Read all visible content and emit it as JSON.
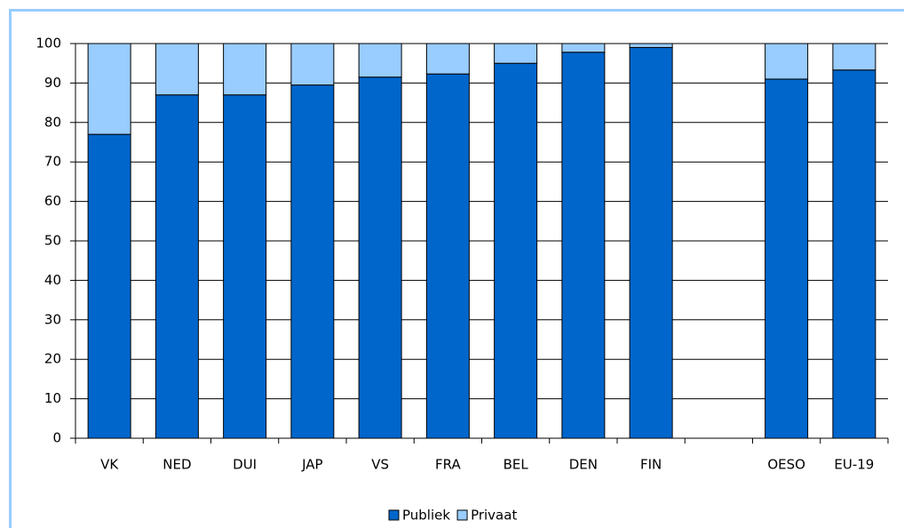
{
  "chart_data": {
    "type": "bar",
    "stacked": true,
    "categories": [
      "VK",
      "NED",
      "DUI",
      "JAP",
      "VS",
      "FRA",
      "BEL",
      "DEN",
      "FIN",
      null,
      "OESO",
      "EU-19"
    ],
    "series": [
      {
        "name": "Publiek",
        "color": "#0066cc",
        "values": [
          77,
          87,
          87,
          89.5,
          91.5,
          92.3,
          95,
          97.8,
          99,
          null,
          91,
          93.3
        ]
      },
      {
        "name": "Privaat",
        "color": "#99ccff",
        "values": [
          23,
          13,
          13,
          10.5,
          8.5,
          7.7,
          5,
          2.2,
          1,
          null,
          9,
          6.7
        ]
      }
    ],
    "ylim": [
      0,
      100
    ],
    "yticks": [
      0,
      10,
      20,
      30,
      40,
      50,
      60,
      70,
      80,
      90,
      100
    ],
    "grid": true,
    "legend": "bottom"
  }
}
